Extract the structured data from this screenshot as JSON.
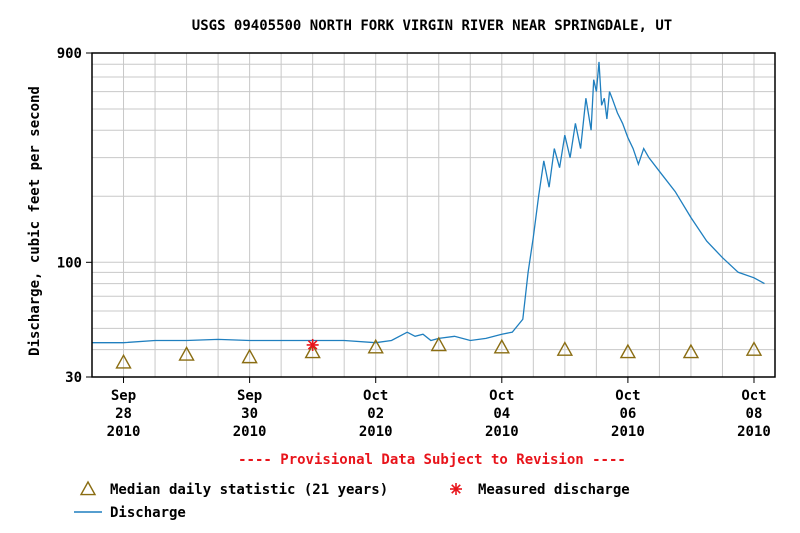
{
  "chart_data": {
    "type": "line",
    "title": "USGS 09405500 NORTH FORK VIRGIN RIVER NEAR SPRINGDALE, UT",
    "ylabel": "Discharge, cubic feet per second",
    "xlabel": "",
    "y_scale": "log",
    "ylim": [
      30,
      900
    ],
    "xlim": [
      "2010-09-27T12:00",
      "2010-10-08T08:00"
    ],
    "y_ticks": [
      {
        "value": 30,
        "label": "30"
      },
      {
        "value": 100,
        "label": "100"
      },
      {
        "value": 900,
        "label": "900"
      }
    ],
    "x_ticks": [
      {
        "date": "2010-09-28",
        "label": [
          "Sep",
          "28",
          "2010"
        ]
      },
      {
        "date": "2010-09-30",
        "label": [
          "Sep",
          "30",
          "2010"
        ]
      },
      {
        "date": "2010-10-02",
        "label": [
          "Oct",
          "02",
          "2010"
        ]
      },
      {
        "date": "2010-10-04",
        "label": [
          "Oct",
          "04",
          "2010"
        ]
      },
      {
        "date": "2010-10-06",
        "label": [
          "Oct",
          "06",
          "2010"
        ]
      },
      {
        "date": "2010-10-08",
        "label": [
          "Oct",
          "08",
          "2010"
        ]
      }
    ],
    "grid": true,
    "annotation": "---- Provisional Data Subject to Revision ----",
    "series": [
      {
        "name": "Discharge",
        "color": "#1f7fbf",
        "points": [
          [
            "2010-09-27T12:00",
            43
          ],
          [
            "2010-09-28T00:00",
            43
          ],
          [
            "2010-09-28T12:00",
            44
          ],
          [
            "2010-09-29T00:00",
            44
          ],
          [
            "2010-09-29T12:00",
            44.5
          ],
          [
            "2010-09-30T00:00",
            44
          ],
          [
            "2010-09-30T12:00",
            44
          ],
          [
            "2010-10-01T00:00",
            44
          ],
          [
            "2010-10-01T12:00",
            44
          ],
          [
            "2010-10-02T00:00",
            43
          ],
          [
            "2010-10-02T06:00",
            44
          ],
          [
            "2010-10-02T12:00",
            48
          ],
          [
            "2010-10-02T15:00",
            46
          ],
          [
            "2010-10-02T18:00",
            47
          ],
          [
            "2010-10-02T21:00",
            44
          ],
          [
            "2010-10-03T00:00",
            45
          ],
          [
            "2010-10-03T06:00",
            46
          ],
          [
            "2010-10-03T12:00",
            44
          ],
          [
            "2010-10-03T18:00",
            45
          ],
          [
            "2010-10-04T00:00",
            47
          ],
          [
            "2010-10-04T04:00",
            48
          ],
          [
            "2010-10-04T08:00",
            55
          ],
          [
            "2010-10-04T10:00",
            90
          ],
          [
            "2010-10-04T12:00",
            130
          ],
          [
            "2010-10-04T14:00",
            200
          ],
          [
            "2010-10-04T16:00",
            290
          ],
          [
            "2010-10-04T18:00",
            220
          ],
          [
            "2010-10-04T20:00",
            330
          ],
          [
            "2010-10-04T22:00",
            270
          ],
          [
            "2010-10-05T00:00",
            380
          ],
          [
            "2010-10-05T02:00",
            300
          ],
          [
            "2010-10-05T04:00",
            430
          ],
          [
            "2010-10-05T06:00",
            330
          ],
          [
            "2010-10-05T08:00",
            560
          ],
          [
            "2010-10-05T10:00",
            400
          ],
          [
            "2010-10-05T11:00",
            680
          ],
          [
            "2010-10-05T12:00",
            600
          ],
          [
            "2010-10-05T13:00",
            820
          ],
          [
            "2010-10-05T14:00",
            520
          ],
          [
            "2010-10-05T15:00",
            560
          ],
          [
            "2010-10-05T16:00",
            450
          ],
          [
            "2010-10-05T17:00",
            600
          ],
          [
            "2010-10-05T18:00",
            560
          ],
          [
            "2010-10-05T20:00",
            480
          ],
          [
            "2010-10-05T22:00",
            430
          ],
          [
            "2010-10-06T00:00",
            370
          ],
          [
            "2010-10-06T02:00",
            330
          ],
          [
            "2010-10-06T04:00",
            280
          ],
          [
            "2010-10-06T06:00",
            330
          ],
          [
            "2010-10-06T08:00",
            300
          ],
          [
            "2010-10-06T12:00",
            260
          ],
          [
            "2010-10-06T18:00",
            210
          ],
          [
            "2010-10-07T00:00",
            160
          ],
          [
            "2010-10-07T06:00",
            125
          ],
          [
            "2010-10-07T12:00",
            105
          ],
          [
            "2010-10-07T18:00",
            90
          ],
          [
            "2010-10-08T00:00",
            85
          ],
          [
            "2010-10-08T04:00",
            80
          ]
        ]
      },
      {
        "name": "Median daily statistic (21 years)",
        "color": "#8a6d12",
        "marker": "triangle",
        "points": [
          [
            "2010-09-28T00:00",
            35
          ],
          [
            "2010-09-29T00:00",
            38
          ],
          [
            "2010-09-30T00:00",
            37
          ],
          [
            "2010-10-01T00:00",
            39
          ],
          [
            "2010-10-02T00:00",
            41
          ],
          [
            "2010-10-03T00:00",
            42
          ],
          [
            "2010-10-04T00:00",
            41
          ],
          [
            "2010-10-05T00:00",
            40
          ],
          [
            "2010-10-06T00:00",
            39
          ],
          [
            "2010-10-07T00:00",
            39
          ],
          [
            "2010-10-08T00:00",
            40
          ]
        ]
      },
      {
        "name": "Measured discharge",
        "color": "#e8141b",
        "marker": "asterisk",
        "points": [
          [
            "2010-10-01T00:00",
            42
          ]
        ]
      }
    ],
    "legend": [
      {
        "label": "Median daily statistic (21 years)",
        "symbol": "triangle"
      },
      {
        "label": "Measured discharge",
        "symbol": "asterisk"
      },
      {
        "label": "Discharge",
        "symbol": "line"
      }
    ],
    "legend_position": "bottom-left"
  }
}
